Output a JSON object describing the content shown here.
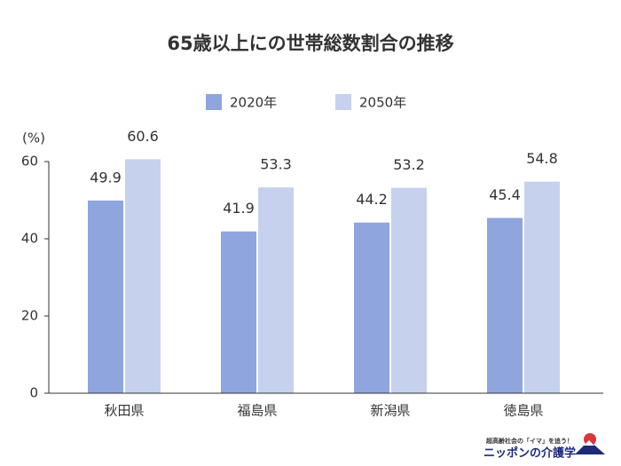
{
  "chart_data": {
    "type": "bar",
    "title": "65歳以上にの世帯総数割合の推移",
    "y_label": "(%)",
    "categories": [
      "秋田県",
      "福島県",
      "新潟県",
      "徳島県"
    ],
    "series": [
      {
        "name": "2020年",
        "color": "#8fa5de",
        "values": [
          49.9,
          41.9,
          44.2,
          45.4
        ]
      },
      {
        "name": "2050年",
        "color": "#c6d1ee",
        "values": [
          60.6,
          53.3,
          53.2,
          54.8
        ]
      }
    ],
    "ylim": [
      0,
      60
    ],
    "yticks": [
      0,
      20,
      40,
      60
    ],
    "grid": false,
    "legend": "top"
  },
  "logo": {
    "tagline": "超高齢社会の「イマ」を追う！",
    "name": "ニッポンの介護学"
  }
}
